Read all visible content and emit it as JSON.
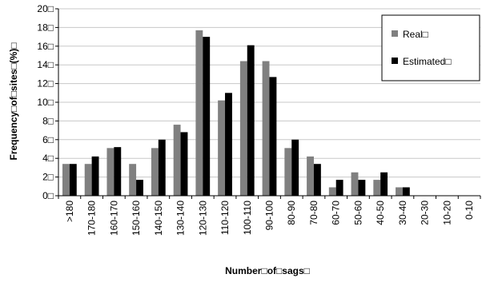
{
  "chart_data": {
    "type": "bar",
    "xlabel": "Number□of□sags□",
    "ylabel": "Frequency□of□sites□(%)□",
    "ylim": [
      0,
      20
    ],
    "yticks": [
      0,
      2,
      4,
      6,
      8,
      10,
      12,
      14,
      16,
      18,
      20
    ],
    "ytick_labels": [
      "0□",
      "2□",
      "4□",
      "6□",
      "8□",
      "10□",
      "12□",
      "14□",
      "16□",
      "18□",
      "20□"
    ],
    "grid": true,
    "legend_position": "top-right",
    "categories": [
      ">180",
      "170-180",
      "160-170",
      "150-160",
      "140-150",
      "130-140",
      "120-130",
      "110-120",
      "100-110",
      "90-100",
      "80-90",
      "70-80",
      "60-70",
      "50-60",
      "40-50",
      "30-40",
      "20-30",
      "10-20",
      "0-10"
    ],
    "series": [
      {
        "name": "Real□",
        "color": "#808080",
        "values": [
          3.4,
          3.4,
          5.1,
          3.4,
          5.1,
          7.6,
          17.7,
          10.2,
          14.4,
          14.4,
          5.1,
          4.2,
          0.9,
          2.5,
          1.7,
          0.9,
          0,
          0,
          0
        ]
      },
      {
        "name": "Estimated□",
        "color": "#000000",
        "values": [
          3.4,
          4.2,
          5.2,
          1.7,
          6.0,
          6.8,
          17.0,
          11.0,
          16.1,
          12.7,
          6.0,
          3.4,
          1.7,
          1.7,
          2.5,
          0.9,
          0,
          0,
          0
        ]
      }
    ]
  }
}
